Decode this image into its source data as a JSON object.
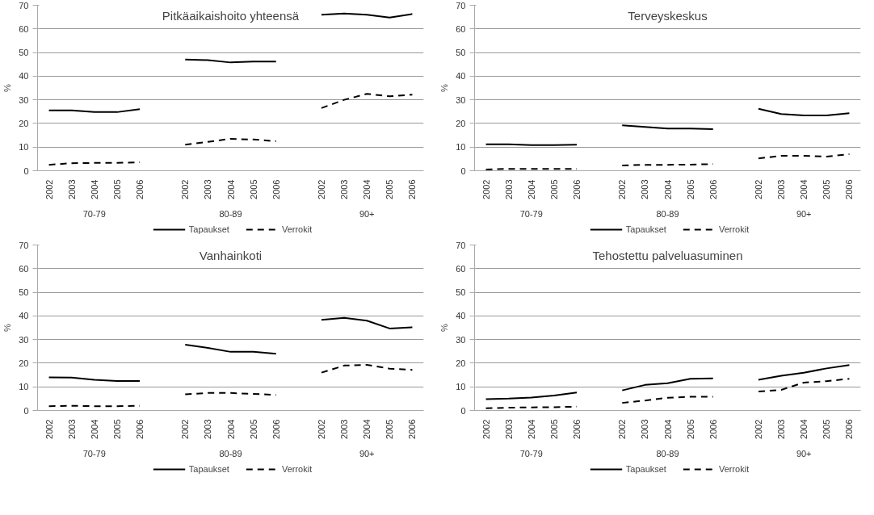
{
  "chart_data": [
    {
      "type": "line",
      "title": "Pitkäaikaishoito yhteensä",
      "ylabel": "%",
      "categories": [
        "2002",
        "2003",
        "2004",
        "2005",
        "2006",
        null,
        "2002",
        "2003",
        "2004",
        "2005",
        "2006",
        null,
        "2002",
        "2003",
        "2004",
        "2005",
        "2006"
      ],
      "annotations": [
        "70-79",
        "80-89",
        "90+"
      ],
      "ylim": [
        0,
        70
      ],
      "yticks": [
        0,
        10,
        20,
        30,
        40,
        50,
        60,
        70
      ],
      "grid": "y",
      "legend": "bottom",
      "series": [
        {
          "name": "Tapaukset",
          "color": "#000000",
          "line_style": "solid",
          "values": [
            25.5,
            25.5,
            24.8,
            24.8,
            26,
            null,
            47,
            46.8,
            45.8,
            46.2,
            46.2,
            null,
            66,
            66.5,
            66,
            64.8,
            66.3
          ]
        },
        {
          "name": "Verrokit",
          "color": "#000000",
          "line_style": "dashed",
          "values": [
            2.5,
            3.2,
            3.3,
            3.3,
            3.6,
            null,
            11,
            12.2,
            13.5,
            13.2,
            12.5,
            null,
            26.5,
            30,
            32.5,
            31.5,
            32.2
          ]
        }
      ]
    },
    {
      "type": "line",
      "title": "Terveyskeskus",
      "ylabel": "%",
      "categories": [
        "2002",
        "2003",
        "2004",
        "2005",
        "2006",
        null,
        "2002",
        "2003",
        "2004",
        "2005",
        "2006",
        null,
        "2002",
        "2003",
        "2004",
        "2005",
        "2006"
      ],
      "annotations": [
        "70-79",
        "80-89",
        "90+"
      ],
      "ylim": [
        0,
        70
      ],
      "yticks": [
        0,
        10,
        20,
        30,
        40,
        50,
        60,
        70
      ],
      "grid": "y",
      "legend": "bottom",
      "series": [
        {
          "name": "Tapaukset",
          "color": "#000000",
          "line_style": "solid",
          "values": [
            11.2,
            11.2,
            10.8,
            10.8,
            11,
            null,
            19.2,
            18.5,
            17.8,
            17.8,
            17.6,
            null,
            26.2,
            24,
            23.4,
            23.4,
            24.3
          ]
        },
        {
          "name": "Verrokit",
          "color": "#000000",
          "line_style": "dashed",
          "values": [
            0.5,
            0.8,
            0.8,
            0.8,
            0.8,
            null,
            2.2,
            2.5,
            2.5,
            2.6,
            2.8,
            null,
            5.2,
            6.3,
            6.3,
            6,
            7
          ]
        }
      ]
    },
    {
      "type": "line",
      "title": "Vanhainkoti",
      "ylabel": "%",
      "categories": [
        "2002",
        "2003",
        "2004",
        "2005",
        "2006",
        null,
        "2002",
        "2003",
        "2004",
        "2005",
        "2006",
        null,
        "2002",
        "2003",
        "2004",
        "2005",
        "2006"
      ],
      "annotations": [
        "70-79",
        "80-89",
        "90+"
      ],
      "ylim": [
        0,
        70
      ],
      "yticks": [
        0,
        10,
        20,
        30,
        40,
        50,
        60,
        70
      ],
      "grid": "y",
      "legend": "bottom",
      "series": [
        {
          "name": "Tapaukset",
          "color": "#000000",
          "line_style": "solid",
          "values": [
            14,
            13.9,
            13,
            12.5,
            12.5,
            null,
            27.8,
            26.5,
            24.8,
            24.8,
            24,
            null,
            38.3,
            39.2,
            38,
            34.7,
            35.2
          ]
        },
        {
          "name": "Verrokit",
          "color": "#000000",
          "line_style": "dashed",
          "values": [
            1.8,
            2,
            1.8,
            1.8,
            2,
            null,
            6.8,
            7.4,
            7.4,
            7,
            6.6,
            null,
            16,
            19,
            19.3,
            17.7,
            17.2
          ]
        }
      ]
    },
    {
      "type": "line",
      "title": "Tehostettu palveluasuminen",
      "ylabel": "%",
      "categories": [
        "2002",
        "2003",
        "2004",
        "2005",
        "2006",
        null,
        "2002",
        "2003",
        "2004",
        "2005",
        "2006",
        null,
        "2002",
        "2003",
        "2004",
        "2005",
        "2006"
      ],
      "annotations": [
        "70-79",
        "80-89",
        "90+"
      ],
      "ylim": [
        0,
        70
      ],
      "yticks": [
        0,
        10,
        20,
        30,
        40,
        50,
        60,
        70
      ],
      "grid": "y",
      "legend": "bottom",
      "series": [
        {
          "name": "Tapaukset",
          "color": "#000000",
          "line_style": "solid",
          "values": [
            4.8,
            5,
            5.5,
            6.3,
            7.6,
            null,
            8.5,
            10.8,
            11.5,
            13.4,
            13.6,
            null,
            13,
            14.7,
            16,
            17.8,
            19.2
          ]
        },
        {
          "name": "Verrokit",
          "color": "#000000",
          "line_style": "dashed",
          "values": [
            0.9,
            1.2,
            1.3,
            1.4,
            1.6,
            null,
            3.2,
            4.2,
            5.4,
            5.8,
            5.8,
            null,
            8,
            8.7,
            11.8,
            12.4,
            13.4
          ]
        }
      ]
    }
  ]
}
